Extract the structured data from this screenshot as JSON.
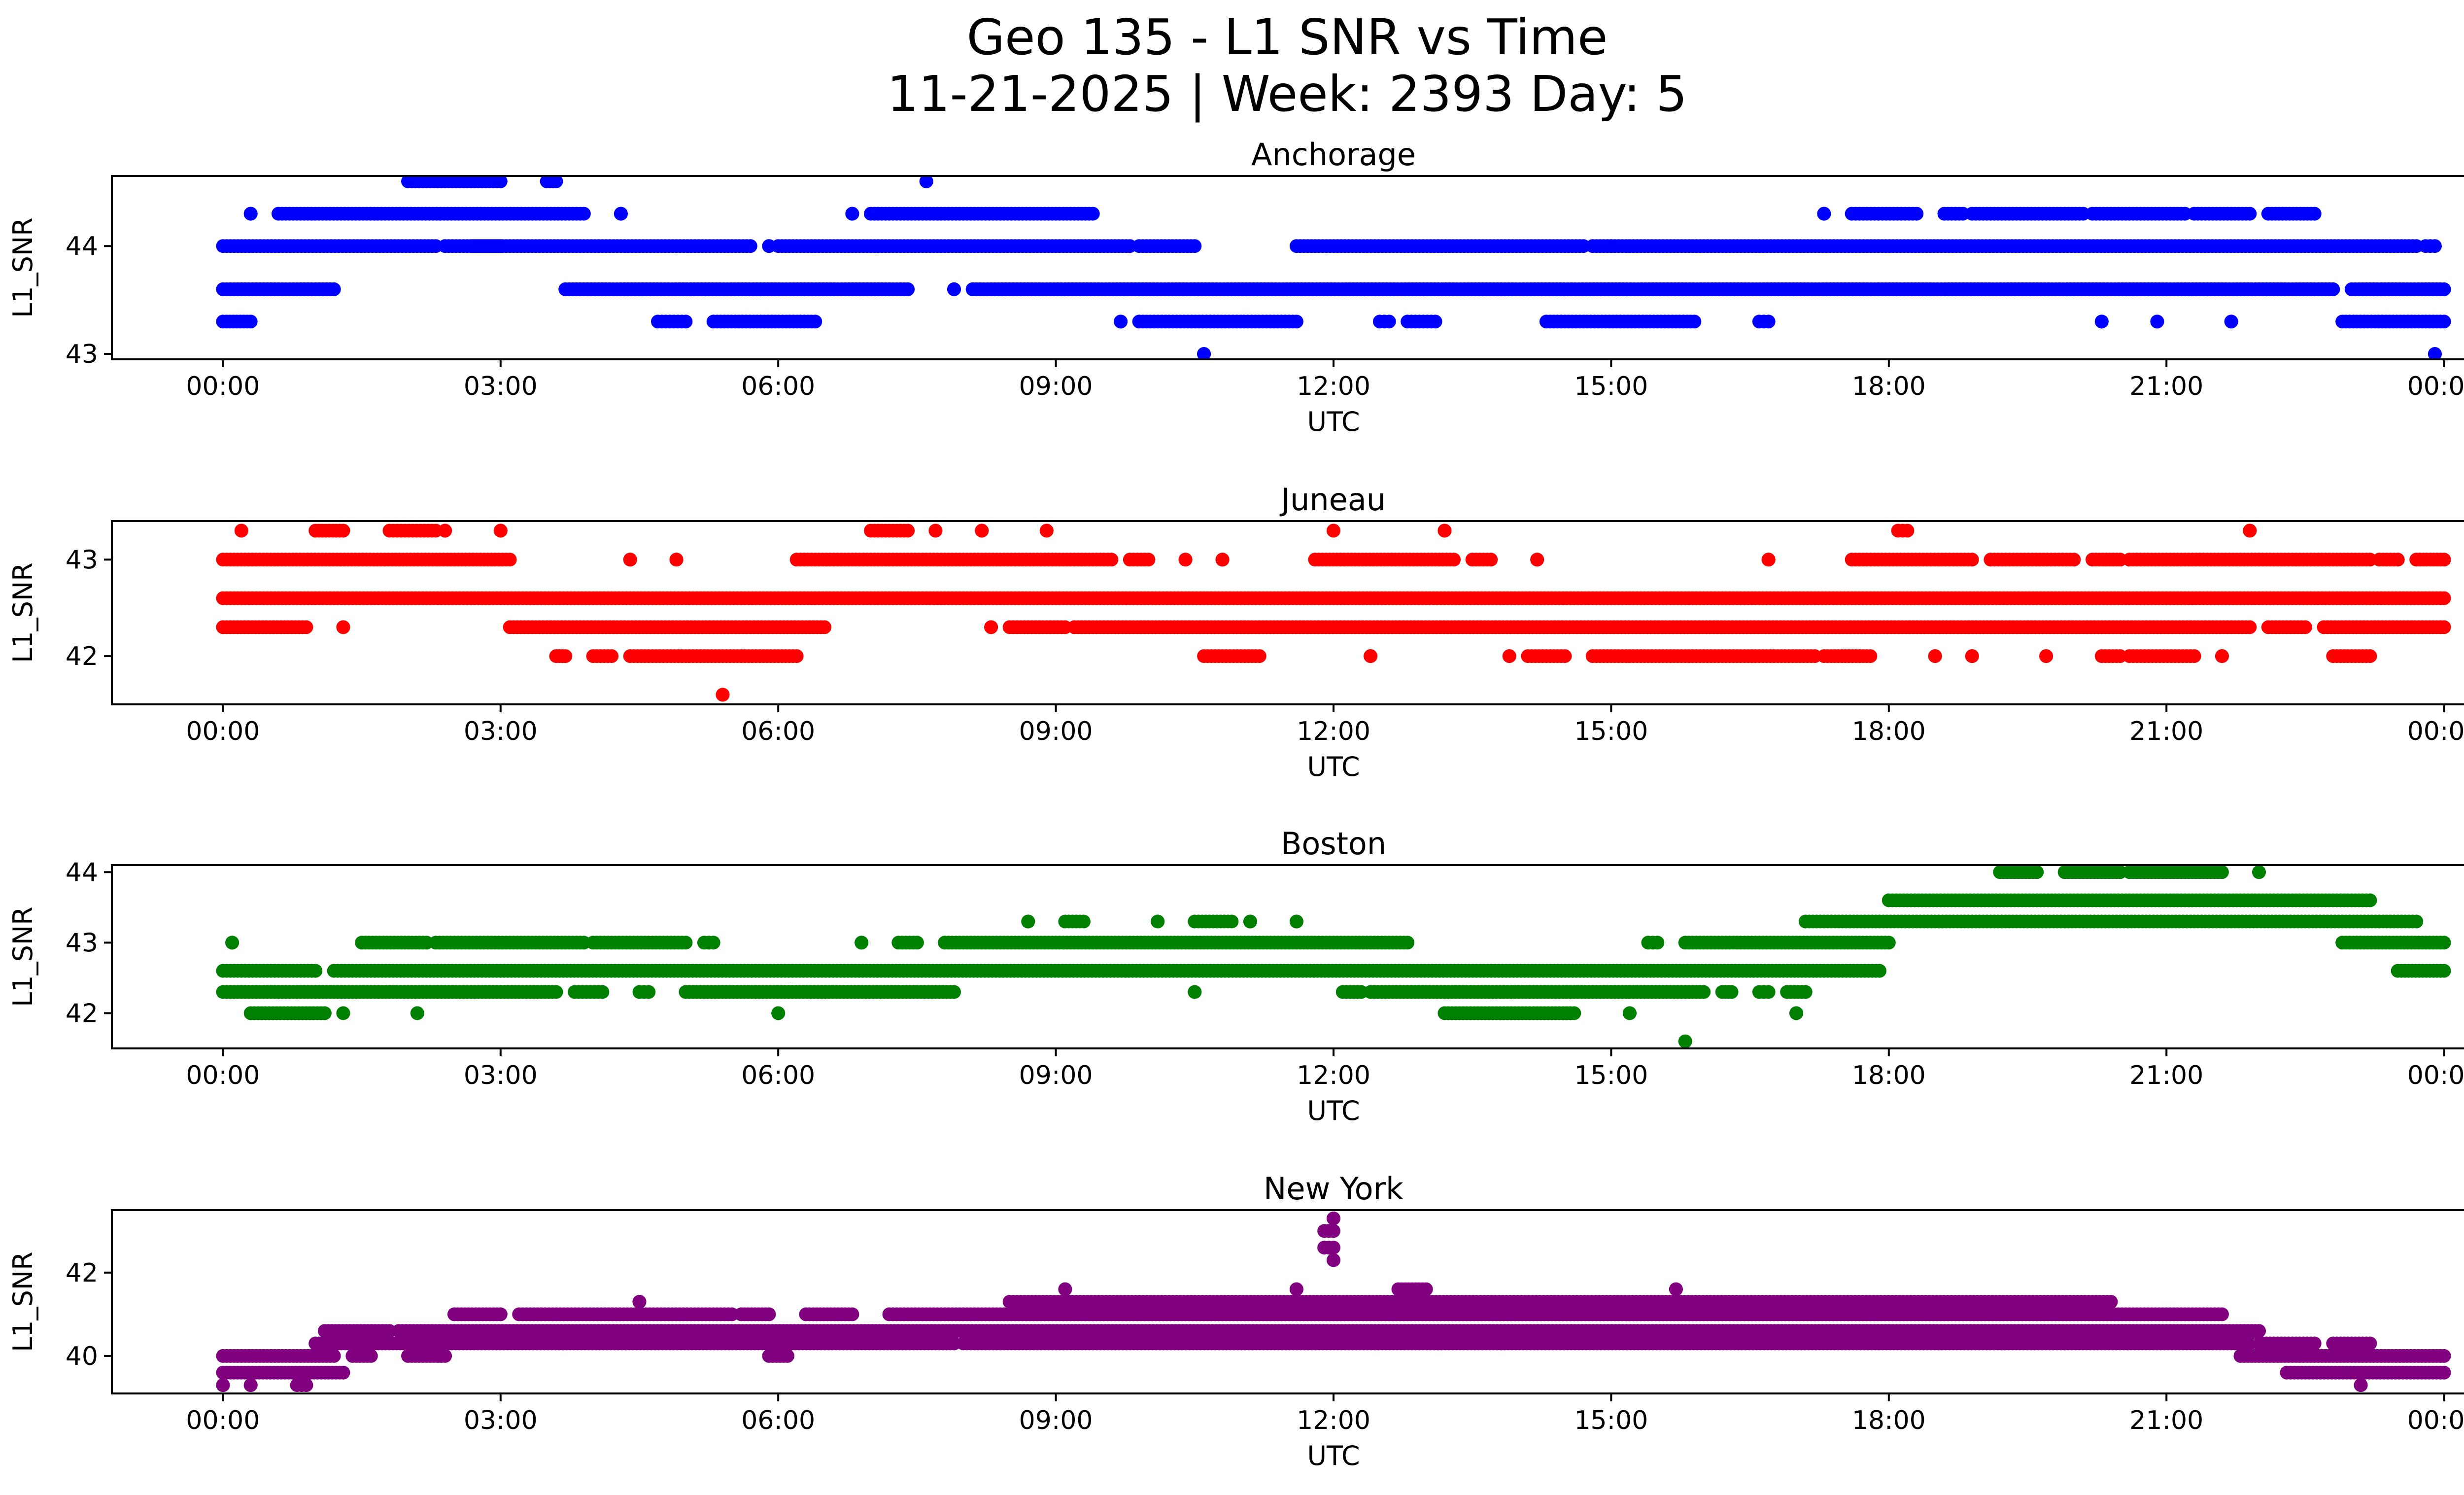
{
  "figure": {
    "title_line1": "Geo 135 - L1 SNR vs Time",
    "title_line2": "11-21-2025 | Week: 2393 Day: 5"
  },
  "chart_data": [
    {
      "type": "scatter",
      "title": "Anchorage",
      "xlabel": "UTC",
      "ylabel": "L1_SNR",
      "color": "#0000ff",
      "xlim_hours": [
        -1.2,
        25.2
      ],
      "ylim": [
        42.95,
        44.65
      ],
      "xticks": [
        0,
        3,
        6,
        9,
        12,
        15,
        18,
        21,
        24
      ],
      "xtick_labels": [
        "00:00",
        "03:00",
        "06:00",
        "09:00",
        "12:00",
        "15:00",
        "18:00",
        "21:00",
        "00:00"
      ],
      "yticks": [
        43,
        44
      ],
      "ytick_labels": [
        "43",
        "44"
      ],
      "bands": [
        {
          "y": 44.6,
          "segments": [
            [
              2.0,
              3.0
            ],
            [
              3.5,
              3.6
            ],
            [
              7.6,
              7.6
            ]
          ]
        },
        {
          "y": 44.3,
          "segments": [
            [
              0.3,
              0.3
            ],
            [
              0.6,
              3.9
            ],
            [
              4.3,
              4.3
            ],
            [
              6.8,
              6.8
            ],
            [
              7.0,
              9.4
            ],
            [
              17.3,
              17.3
            ],
            [
              17.6,
              18.3
            ],
            [
              18.6,
              18.8
            ],
            [
              18.9,
              20.1
            ],
            [
              20.2,
              21.2
            ],
            [
              21.3,
              21.9
            ],
            [
              22.1,
              22.6
            ]
          ]
        },
        {
          "y": 44.0,
          "segments": [
            [
              0.0,
              2.3
            ],
            [
              2.4,
              3.0
            ],
            [
              2.7,
              5.7
            ],
            [
              5.9,
              5.9
            ],
            [
              6.0,
              9.8
            ],
            [
              9.9,
              10.5
            ],
            [
              11.6,
              14.7
            ],
            [
              14.8,
              15.0
            ],
            [
              15.0,
              23.7
            ],
            [
              23.8,
              23.9
            ]
          ]
        },
        {
          "y": 43.6,
          "segments": [
            [
              0.0,
              1.2
            ],
            [
              3.7,
              7.4
            ],
            [
              7.9,
              7.9
            ],
            [
              8.1,
              22.8
            ],
            [
              23.0,
              24.0
            ]
          ]
        },
        {
          "y": 43.3,
          "segments": [
            [
              0.0,
              0.3
            ],
            [
              4.7,
              5.0
            ],
            [
              5.3,
              6.4
            ],
            [
              9.7,
              9.7
            ],
            [
              9.9,
              11.6
            ],
            [
              12.5,
              12.6
            ],
            [
              12.8,
              13.1
            ],
            [
              14.3,
              15.9
            ],
            [
              16.6,
              16.7
            ],
            [
              20.3,
              20.3
            ],
            [
              20.9,
              20.9
            ],
            [
              21.7,
              21.7
            ],
            [
              22.9,
              24.0
            ]
          ]
        },
        {
          "y": 43.0,
          "segments": [
            [
              10.6,
              10.6
            ],
            [
              23.9,
              23.9
            ]
          ]
        }
      ]
    },
    {
      "type": "scatter",
      "title": "Juneau",
      "xlabel": "UTC",
      "ylabel": "L1_SNR",
      "color": "#ff0000",
      "xlim_hours": [
        -1.2,
        25.2
      ],
      "ylim": [
        41.5,
        43.4
      ],
      "xticks": [
        0,
        3,
        6,
        9,
        12,
        15,
        18,
        21,
        24
      ],
      "xtick_labels": [
        "00:00",
        "03:00",
        "06:00",
        "09:00",
        "12:00",
        "15:00",
        "18:00",
        "21:00",
        "00:00"
      ],
      "yticks": [
        42,
        43
      ],
      "ytick_labels": [
        "42",
        "43"
      ],
      "bands": [
        {
          "y": 43.3,
          "segments": [
            [
              0.2,
              0.2
            ],
            [
              1.0,
              1.3
            ],
            [
              1.8,
              2.3
            ],
            [
              2.4,
              2.4
            ],
            [
              3.0,
              3.0
            ],
            [
              7.0,
              7.4
            ],
            [
              7.7,
              7.7
            ],
            [
              8.2,
              8.2
            ],
            [
              8.9,
              8.9
            ],
            [
              12.0,
              12.0
            ],
            [
              13.2,
              13.2
            ],
            [
              18.1,
              18.2
            ],
            [
              21.9,
              21.9
            ]
          ]
        },
        {
          "y": 43.0,
          "segments": [
            [
              0.0,
              3.1
            ],
            [
              4.4,
              4.4
            ],
            [
              4.9,
              4.9
            ],
            [
              6.2,
              9.6
            ],
            [
              9.8,
              10.0
            ],
            [
              10.4,
              10.4
            ],
            [
              10.8,
              10.8
            ],
            [
              11.8,
              13.3
            ],
            [
              13.5,
              13.7
            ],
            [
              14.2,
              14.2
            ],
            [
              16.7,
              16.7
            ],
            [
              17.6,
              18.9
            ],
            [
              19.1,
              20.0
            ],
            [
              20.2,
              20.5
            ],
            [
              20.6,
              23.2
            ],
            [
              23.3,
              23.5
            ],
            [
              23.7,
              24.0
            ]
          ]
        },
        {
          "y": 42.6,
          "segments": [
            [
              0.0,
              24.0
            ]
          ]
        },
        {
          "y": 42.3,
          "segments": [
            [
              0.0,
              0.9
            ],
            [
              1.3,
              1.3
            ],
            [
              3.1,
              6.5
            ],
            [
              8.3,
              8.3
            ],
            [
              8.5,
              9.1
            ],
            [
              9.2,
              21.9
            ],
            [
              22.1,
              22.5
            ],
            [
              22.7,
              24.0
            ]
          ]
        },
        {
          "y": 42.0,
          "segments": [
            [
              3.6,
              3.7
            ],
            [
              4.0,
              4.2
            ],
            [
              4.4,
              6.2
            ],
            [
              10.6,
              11.2
            ],
            [
              12.4,
              12.4
            ],
            [
              13.9,
              13.9
            ],
            [
              14.1,
              14.5
            ],
            [
              14.8,
              17.2
            ],
            [
              17.3,
              17.8
            ],
            [
              18.5,
              18.5
            ],
            [
              18.9,
              18.9
            ],
            [
              19.7,
              19.7
            ],
            [
              20.3,
              20.5
            ],
            [
              20.6,
              21.3
            ],
            [
              21.6,
              21.6
            ],
            [
              22.8,
              23.2
            ]
          ]
        },
        {
          "y": 41.6,
          "segments": [
            [
              5.4,
              5.4
            ]
          ]
        }
      ]
    },
    {
      "type": "scatter",
      "title": "Boston",
      "xlabel": "UTC",
      "ylabel": "L1_SNR",
      "color": "#008000",
      "xlim_hours": [
        -1.2,
        25.2
      ],
      "ylim": [
        41.5,
        44.1
      ],
      "xticks": [
        0,
        3,
        6,
        9,
        12,
        15,
        18,
        21,
        24
      ],
      "xtick_labels": [
        "00:00",
        "03:00",
        "06:00",
        "09:00",
        "12:00",
        "15:00",
        "18:00",
        "21:00",
        "00:00"
      ],
      "yticks": [
        42,
        43,
        44
      ],
      "ytick_labels": [
        "42",
        "43",
        "44"
      ],
      "bands": [
        {
          "y": 44.0,
          "segments": [
            [
              19.2,
              19.6
            ],
            [
              19.9,
              20.5
            ],
            [
              20.6,
              21.6
            ],
            [
              22.0,
              22.0
            ]
          ]
        },
        {
          "y": 43.6,
          "segments": [
            [
              18.0,
              23.2
            ]
          ]
        },
        {
          "y": 43.3,
          "segments": [
            [
              8.7,
              8.7
            ],
            [
              9.1,
              9.3
            ],
            [
              10.1,
              10.1
            ],
            [
              10.5,
              10.9
            ],
            [
              11.1,
              11.1
            ],
            [
              11.6,
              11.6
            ],
            [
              17.1,
              23.7
            ]
          ]
        },
        {
          "y": 43.0,
          "segments": [
            [
              0.1,
              0.1
            ],
            [
              1.5,
              2.2
            ],
            [
              2.3,
              3.9
            ],
            [
              4.0,
              5.0
            ],
            [
              5.2,
              5.3
            ],
            [
              6.9,
              6.9
            ],
            [
              7.3,
              7.5
            ],
            [
              7.8,
              12.8
            ],
            [
              15.4,
              15.5
            ],
            [
              15.8,
              18.0
            ],
            [
              22.9,
              24.0
            ]
          ]
        },
        {
          "y": 42.6,
          "segments": [
            [
              0.0,
              1.0
            ],
            [
              1.2,
              17.9
            ],
            [
              23.5,
              24.0
            ]
          ]
        },
        {
          "y": 42.3,
          "segments": [
            [
              0.0,
              3.6
            ],
            [
              3.8,
              4.1
            ],
            [
              4.5,
              4.6
            ],
            [
              5.0,
              7.9
            ],
            [
              10.5,
              10.5
            ],
            [
              12.1,
              12.3
            ],
            [
              12.4,
              15.0
            ],
            [
              15.0,
              16.0
            ],
            [
              16.2,
              16.3
            ],
            [
              16.6,
              16.7
            ],
            [
              16.9,
              17.1
            ]
          ]
        },
        {
          "y": 42.0,
          "segments": [
            [
              0.3,
              1.1
            ],
            [
              1.3,
              1.3
            ],
            [
              2.1,
              2.1
            ],
            [
              6.0,
              6.0
            ],
            [
              13.2,
              14.6
            ],
            [
              15.2,
              15.2
            ],
            [
              17.0,
              17.0
            ]
          ]
        },
        {
          "y": 41.6,
          "segments": [
            [
              15.8,
              15.8
            ]
          ]
        }
      ]
    },
    {
      "type": "scatter",
      "title": "New York",
      "xlabel": "UTC",
      "ylabel": "L1_SNR",
      "color": "#800080",
      "xlim_hours": [
        -1.2,
        25.2
      ],
      "ylim": [
        39.1,
        43.5
      ],
      "xticks": [
        0,
        3,
        6,
        9,
        12,
        15,
        18,
        21,
        24
      ],
      "xtick_labels": [
        "00:00",
        "03:00",
        "06:00",
        "09:00",
        "12:00",
        "15:00",
        "18:00",
        "21:00",
        "00:00"
      ],
      "yticks": [
        40,
        42
      ],
      "ytick_labels": [
        "40",
        "42"
      ],
      "bands": [
        {
          "y": 43.3,
          "segments": [
            [
              12.0,
              12.0
            ]
          ]
        },
        {
          "y": 43.0,
          "segments": [
            [
              11.9,
              12.0
            ]
          ]
        },
        {
          "y": 42.6,
          "segments": [
            [
              11.9,
              12.0
            ]
          ]
        },
        {
          "y": 42.3,
          "segments": [
            [
              12.0,
              12.0
            ]
          ]
        },
        {
          "y": 41.6,
          "segments": [
            [
              9.1,
              9.1
            ],
            [
              11.6,
              11.6
            ],
            [
              12.7,
              13.0
            ],
            [
              15.7,
              15.7
            ]
          ]
        },
        {
          "y": 41.3,
          "segments": [
            [
              4.5,
              4.5
            ],
            [
              8.5,
              20.4
            ]
          ]
        },
        {
          "y": 41.0,
          "segments": [
            [
              2.5,
              3.0
            ],
            [
              3.2,
              5.5
            ],
            [
              5.6,
              5.9
            ],
            [
              6.3,
              6.8
            ],
            [
              7.2,
              21.6
            ]
          ]
        },
        {
          "y": 40.6,
          "segments": [
            [
              1.1,
              1.8
            ],
            [
              1.9,
              22.0
            ]
          ]
        },
        {
          "y": 40.3,
          "segments": [
            [
              1.0,
              7.9
            ],
            [
              8.0,
              21.9
            ],
            [
              22.0,
              22.6
            ],
            [
              22.8,
              23.2
            ]
          ]
        },
        {
          "y": 40.0,
          "segments": [
            [
              0.0,
              1.2
            ],
            [
              1.4,
              1.6
            ],
            [
              2.0,
              2.4
            ],
            [
              5.9,
              6.1
            ],
            [
              21.8,
              24.0
            ]
          ]
        },
        {
          "y": 39.6,
          "segments": [
            [
              0.0,
              1.3
            ],
            [
              22.3,
              24.0
            ]
          ]
        },
        {
          "y": 39.3,
          "segments": [
            [
              0.0,
              0.0
            ],
            [
              0.3,
              0.3
            ],
            [
              0.8,
              0.9
            ],
            [
              23.1,
              23.1
            ]
          ]
        }
      ]
    }
  ]
}
